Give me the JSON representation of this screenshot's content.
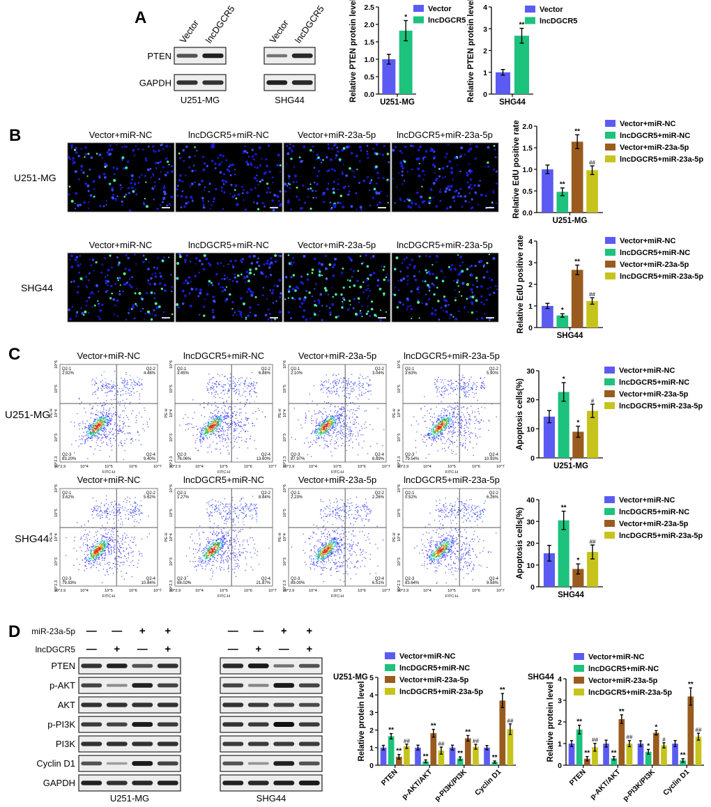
{
  "panel_letters": {
    "a": "A",
    "b": "B",
    "c": "C",
    "d": "D"
  },
  "colors": {
    "vector_mir_nc": "#5b5bf3",
    "lnc_mir_nc": "#1dc27c",
    "vector_mir23a": "#9a5b1f",
    "lnc_mir23a": "#c6c41c"
  },
  "panel_a": {
    "blots": [
      {
        "cell_line": "U251-MG",
        "lanes": [
          "Vector",
          "lncDGCR5"
        ],
        "rows": [
          {
            "label": "PTEN",
            "intensity": [
              0.6,
              0.9
            ]
          },
          {
            "label": "GAPDH",
            "intensity": [
              0.8,
              0.8
            ]
          }
        ]
      },
      {
        "cell_line": "SHG44",
        "lanes": [
          "Vector",
          "lncDGCR5"
        ],
        "rows": [
          {
            "label": "PTEN",
            "intensity": [
              0.4,
              0.85
            ]
          },
          {
            "label": "GAPDH",
            "intensity": [
              0.9,
              0.85
            ]
          }
        ]
      }
    ]
  },
  "panel_b": {
    "conditions": [
      "Vector+miR-NC",
      "lncDGCR5+miR-NC",
      "Vector+miR-23a-5p",
      "lncDGCR5+miR-23a-5p"
    ],
    "rows": [
      {
        "cell_line": "U251-MG",
        "green_fraction": [
          0.12,
          0.06,
          0.2,
          0.1
        ]
      },
      {
        "cell_line": "SHG44",
        "green_fraction": [
          0.22,
          0.14,
          0.35,
          0.22
        ]
      }
    ]
  },
  "panel_c": {
    "conditions": [
      "Vector+miR-NC",
      "lncDGCR5+miR-NC",
      "Vector+miR-23a-5p",
      "lncDGCR5+miR-23a-5p"
    ],
    "x_axis": "FITC-H",
    "y_axis": "PE-H",
    "x_ticks": [
      "10^2.9",
      "10^4",
      "10^5",
      "10^6",
      "10^7"
    ],
    "y_ticks": [
      "10^2.3",
      "10^3",
      "10^4",
      "10^5",
      "10^6"
    ],
    "rows": [
      {
        "cell_line": "U251-MG",
        "plots": [
          {
            "quadrants": [
              {
                "name": "Q2-1",
                "value": "2.92%"
              },
              {
                "name": "Q2-2",
                "value": "4.48%"
              },
              {
                "name": "Q2-3",
                "value": "83.20%"
              },
              {
                "name": "Q2-4",
                "value": "9.40%"
              }
            ]
          },
          {
            "quadrants": [
              {
                "name": "Q2-1",
                "value": "3.45%"
              },
              {
                "name": "Q2-2",
                "value": "6.88%"
              },
              {
                "name": "Q2-3",
                "value": "76.06%"
              },
              {
                "name": "Q2-4",
                "value": "13.60%"
              }
            ]
          },
          {
            "quadrants": [
              {
                "name": "Q2-1",
                "value": "2.10%"
              },
              {
                "name": "Q2-2",
                "value": "3.04%"
              },
              {
                "name": "Q2-3",
                "value": "87.97%"
              },
              {
                "name": "Q2-4",
                "value": "6.89%"
              }
            ]
          },
          {
            "quadrants": [
              {
                "name": "Q2-1",
                "value": "3.63%"
              },
              {
                "name": "Q2-2",
                "value": "5.90%"
              },
              {
                "name": "Q2-3",
                "value": "79.54%"
              },
              {
                "name": "Q2-4",
                "value": "10.93%"
              }
            ]
          }
        ]
      },
      {
        "cell_line": "SHG44",
        "plots": [
          {
            "quadrants": [
              {
                "name": "Q2-1",
                "value": "3.62%"
              },
              {
                "name": "Q2-2",
                "value": "5.62%"
              },
              {
                "name": "Q2-3",
                "value": "79.93%"
              },
              {
                "name": "Q2-4",
                "value": "10.84%"
              }
            ]
          },
          {
            "quadrants": [
              {
                "name": "Q2-1",
                "value": "1.27%"
              },
              {
                "name": "Q2-2",
                "value": "8.84%"
              },
              {
                "name": "Q2-3",
                "value": "68.02%"
              },
              {
                "name": "Q2-4",
                "value": "21.87%"
              }
            ]
          },
          {
            "quadrants": [
              {
                "name": "Q2-1",
                "value": "2.23%"
              },
              {
                "name": "Q2-2",
                "value": "2.26%"
              },
              {
                "name": "Q2-3",
                "value": "89.00%"
              },
              {
                "name": "Q2-4",
                "value": "6.51%"
              }
            ]
          },
          {
            "quadrants": [
              {
                "name": "Q2-1",
                "value": "0.52%"
              },
              {
                "name": "Q2-2",
                "value": "6.26%"
              },
              {
                "name": "Q2-3",
                "value": "83.64%"
              },
              {
                "name": "Q2-4",
                "value": "9.58%"
              }
            ]
          }
        ]
      }
    ]
  },
  "panel_d": {
    "treatments": [
      {
        "label": "miR-23a-5p",
        "signs": [
          "—",
          "—",
          "+",
          "+"
        ]
      },
      {
        "label": "lncDGCR5",
        "signs": [
          "—",
          "+",
          "—",
          "+"
        ]
      }
    ],
    "blots": [
      {
        "cell_line": "U251-MG",
        "rows": [
          {
            "label": "PTEN",
            "intensity": [
              0.8,
              0.9,
              0.6,
              0.8
            ]
          },
          {
            "label": "p-AKT",
            "intensity": [
              0.7,
              0.25,
              0.9,
              0.7
            ]
          },
          {
            "label": "AKT",
            "intensity": [
              0.8,
              0.8,
              0.8,
              0.8
            ]
          },
          {
            "label": "p-PI3K",
            "intensity": [
              0.75,
              0.7,
              0.95,
              0.75
            ]
          },
          {
            "label": "PI3K",
            "intensity": [
              0.8,
              0.8,
              0.8,
              0.8
            ]
          },
          {
            "label": "Cyclin D1",
            "intensity": [
              0.6,
              0.15,
              0.95,
              0.7
            ]
          },
          {
            "label": "GAPDH",
            "intensity": [
              0.9,
              0.8,
              0.85,
              0.9
            ]
          }
        ]
      },
      {
        "cell_line": "SHG44",
        "rows": [
          {
            "label": "PTEN",
            "intensity": [
              0.85,
              0.95,
              0.4,
              0.6
            ]
          },
          {
            "label": "p-AKT",
            "intensity": [
              0.7,
              0.3,
              0.95,
              0.7
            ]
          },
          {
            "label": "AKT",
            "intensity": [
              0.8,
              0.75,
              0.7,
              0.65
            ]
          },
          {
            "label": "p-PI3K",
            "intensity": [
              0.8,
              0.75,
              1.0,
              0.75
            ]
          },
          {
            "label": "PI3K",
            "intensity": [
              0.75,
              0.75,
              0.75,
              0.75
            ]
          },
          {
            "label": "Cyclin D1",
            "intensity": [
              0.6,
              0.2,
              0.9,
              0.6
            ]
          },
          {
            "label": "GAPDH",
            "intensity": [
              0.9,
              0.85,
              0.9,
              0.95
            ]
          }
        ]
      }
    ]
  },
  "chart_data": [
    {
      "id": "a-u251",
      "type": "bar",
      "title": "",
      "ylabel": "Relative PTEN protein level",
      "ylim": [
        0,
        2.5
      ],
      "yticks": [
        "0.0",
        "0.5",
        "1.0",
        "1.5",
        "2.0",
        "2.5"
      ],
      "categories": [
        "U251-MG"
      ],
      "series": [
        {
          "name": "Vector",
          "color": "#5b5bf3",
          "values": [
            1.0
          ],
          "errors": [
            0.14
          ],
          "sig": [
            ""
          ]
        },
        {
          "name": "lncDGCR5",
          "color": "#1dc27c",
          "values": [
            1.82
          ],
          "errors": [
            0.29
          ],
          "sig": [
            "*"
          ]
        }
      ]
    },
    {
      "id": "a-shg44",
      "type": "bar",
      "title": "",
      "ylabel": "Relative PTEN protein level",
      "ylim": [
        0,
        4
      ],
      "yticks": [
        "0",
        "1",
        "2",
        "3",
        "4"
      ],
      "categories": [
        "SHG44"
      ],
      "series": [
        {
          "name": "Vector",
          "color": "#5b5bf3",
          "values": [
            1.0
          ],
          "errors": [
            0.13
          ],
          "sig": [
            ""
          ]
        },
        {
          "name": "lncDGCR5",
          "color": "#1dc27c",
          "values": [
            2.68
          ],
          "errors": [
            0.34
          ],
          "sig": [
            "**"
          ]
        }
      ]
    },
    {
      "id": "b-u251",
      "type": "bar",
      "title": "",
      "ylabel": "Relative EdU positive rate",
      "ylim": [
        0,
        2.0
      ],
      "yticks": [
        "0.0",
        "0.5",
        "1.0",
        "1.5",
        "2.0"
      ],
      "categories": [
        "U251-MG"
      ],
      "series": [
        {
          "name": "Vector+miR-NC",
          "color": "#5b5bf3",
          "values": [
            1.0
          ],
          "errors": [
            0.1
          ],
          "sig": [
            ""
          ]
        },
        {
          "name": "lncDGCR5+miR-NC",
          "color": "#1dc27c",
          "values": [
            0.48
          ],
          "errors": [
            0.09
          ],
          "sig": [
            "**"
          ]
        },
        {
          "name": "Vector+miR-23a-5p",
          "color": "#9a5b1f",
          "values": [
            1.64
          ],
          "errors": [
            0.16
          ],
          "sig": [
            "**"
          ]
        },
        {
          "name": "lncDGCR5+miR-23a-5p",
          "color": "#c6c41c",
          "values": [
            0.98
          ],
          "errors": [
            0.1
          ],
          "sig": [
            "##"
          ]
        }
      ]
    },
    {
      "id": "b-shg44",
      "type": "bar",
      "title": "",
      "ylabel": "Relative EdU positive rate",
      "ylim": [
        0,
        4
      ],
      "yticks": [
        "0",
        "1",
        "2",
        "3",
        "4"
      ],
      "categories": [
        "SHG44"
      ],
      "series": [
        {
          "name": "Vector+miR-NC",
          "color": "#5b5bf3",
          "values": [
            1.0
          ],
          "errors": [
            0.12
          ],
          "sig": [
            ""
          ]
        },
        {
          "name": "lncDGCR5+miR-NC",
          "color": "#1dc27c",
          "values": [
            0.56
          ],
          "errors": [
            0.08
          ],
          "sig": [
            "*"
          ]
        },
        {
          "name": "Vector+miR-23a-5p",
          "color": "#9a5b1f",
          "values": [
            2.67
          ],
          "errors": [
            0.22
          ],
          "sig": [
            "**"
          ]
        },
        {
          "name": "lncDGCR5+miR-23a-5p",
          "color": "#c6c41c",
          "values": [
            1.23
          ],
          "errors": [
            0.15
          ],
          "sig": [
            "##"
          ]
        }
      ]
    },
    {
      "id": "c-u251",
      "type": "bar",
      "title": "",
      "ylabel": "Apoptosis cells(%)",
      "ylim": [
        0,
        30
      ],
      "yticks": [
        "0",
        "10",
        "20",
        "30"
      ],
      "categories": [
        "U251-MG"
      ],
      "series": [
        {
          "name": "Vector+miR-NC",
          "color": "#5b5bf3",
          "values": [
            14.2
          ],
          "errors": [
            2.1
          ],
          "sig": [
            ""
          ]
        },
        {
          "name": "lncDGCR5+miR-NC",
          "color": "#1dc27c",
          "values": [
            22.7
          ],
          "errors": [
            3.2
          ],
          "sig": [
            "*"
          ]
        },
        {
          "name": "Vector+miR-23a-5p",
          "color": "#9a5b1f",
          "values": [
            9.0
          ],
          "errors": [
            1.9
          ],
          "sig": [
            "*"
          ]
        },
        {
          "name": "lncDGCR5+miR-23a-5p",
          "color": "#c6c41c",
          "values": [
            16.2
          ],
          "errors": [
            2.3
          ],
          "sig": [
            "#"
          ]
        }
      ]
    },
    {
      "id": "c-shg44",
      "type": "bar",
      "title": "",
      "ylabel": "Apoptosis cells(%)",
      "ylim": [
        0,
        40
      ],
      "yticks": [
        "0",
        "10",
        "20",
        "30",
        "40"
      ],
      "categories": [
        "SHG44"
      ],
      "series": [
        {
          "name": "Vector+miR-NC",
          "color": "#5b5bf3",
          "values": [
            15.4
          ],
          "errors": [
            3.6
          ],
          "sig": [
            ""
          ]
        },
        {
          "name": "lncDGCR5+miR-NC",
          "color": "#1dc27c",
          "values": [
            30.5
          ],
          "errors": [
            4.2
          ],
          "sig": [
            "**"
          ]
        },
        {
          "name": "Vector+miR-23a-5p",
          "color": "#9a5b1f",
          "values": [
            8.2
          ],
          "errors": [
            2.3
          ],
          "sig": [
            "*"
          ]
        },
        {
          "name": "lncDGCR5+miR-23a-5p",
          "color": "#c6c41c",
          "values": [
            16.0
          ],
          "errors": [
            3.2
          ],
          "sig": [
            "##"
          ]
        }
      ]
    },
    {
      "id": "d-u251",
      "type": "bar",
      "title": "U251-MG",
      "ylabel": "Relative protein level",
      "ylim": [
        0,
        5
      ],
      "yticks": [
        "0",
        "1",
        "2",
        "3",
        "4",
        "5"
      ],
      "categories": [
        "PTEN",
        "p-AKT/AKT",
        "p-PI3K/PI3K",
        "Cyclin D1"
      ],
      "series": [
        {
          "name": "Vector+miR-NC",
          "color": "#5b5bf3",
          "values": [
            1.0,
            1.0,
            1.0,
            1.0
          ],
          "errors": [
            0.13,
            0.14,
            0.14,
            0.12
          ],
          "sig": [
            "",
            "",
            "",
            ""
          ]
        },
        {
          "name": "lncDGCR5+miR-NC",
          "color": "#1dc27c",
          "values": [
            1.65,
            0.22,
            0.38,
            0.18
          ],
          "errors": [
            0.15,
            0.08,
            0.09,
            0.06
          ],
          "sig": [
            "**",
            "**",
            "**",
            "**"
          ]
        },
        {
          "name": "Vector+miR-23a-5p",
          "color": "#9a5b1f",
          "values": [
            0.48,
            1.82,
            1.53,
            3.68
          ],
          "errors": [
            0.13,
            0.22,
            0.16,
            0.4
          ],
          "sig": [
            "**",
            "**",
            "**",
            "**"
          ]
        },
        {
          "name": "lncDGCR5+miR-23a-5p",
          "color": "#c6c41c",
          "values": [
            1.08,
            0.83,
            1.05,
            2.05
          ],
          "errors": [
            0.12,
            0.2,
            0.14,
            0.3
          ],
          "sig": [
            "##",
            "##",
            "##",
            "##"
          ]
        }
      ]
    },
    {
      "id": "d-shg44",
      "type": "bar",
      "title": "SHG44",
      "ylabel": "Relative protein level",
      "ylim": [
        0,
        4
      ],
      "yticks": [
        "0",
        "1",
        "2",
        "3",
        "4"
      ],
      "categories": [
        "PTEN",
        "p-AKT/AKT",
        "p-PI3K/PI3K",
        "Cyclin D1"
      ],
      "series": [
        {
          "name": "Vector+miR-NC",
          "color": "#5b5bf3",
          "values": [
            1.0,
            1.0,
            1.0,
            1.0
          ],
          "errors": [
            0.14,
            0.16,
            0.13,
            0.14
          ],
          "sig": [
            "",
            "",
            "",
            ""
          ]
        },
        {
          "name": "lncDGCR5+miR-NC",
          "color": "#1dc27c",
          "values": [
            1.65,
            0.32,
            0.62,
            0.22
          ],
          "errors": [
            0.2,
            0.08,
            0.11,
            0.08
          ],
          "sig": [
            "**",
            "**",
            "*",
            "**"
          ]
        },
        {
          "name": "Vector+miR-23a-5p",
          "color": "#9a5b1f",
          "values": [
            0.3,
            2.13,
            1.5,
            3.18
          ],
          "errors": [
            0.1,
            0.2,
            0.1,
            0.4
          ],
          "sig": [
            "**",
            "**",
            "*",
            "**"
          ]
        },
        {
          "name": "lncDGCR5+miR-23a-5p",
          "color": "#c6c41c",
          "values": [
            0.83,
            1.0,
            0.92,
            1.32
          ],
          "errors": [
            0.18,
            0.14,
            0.12,
            0.16
          ],
          "sig": [
            "##",
            "##",
            "#",
            "##"
          ]
        }
      ]
    }
  ]
}
